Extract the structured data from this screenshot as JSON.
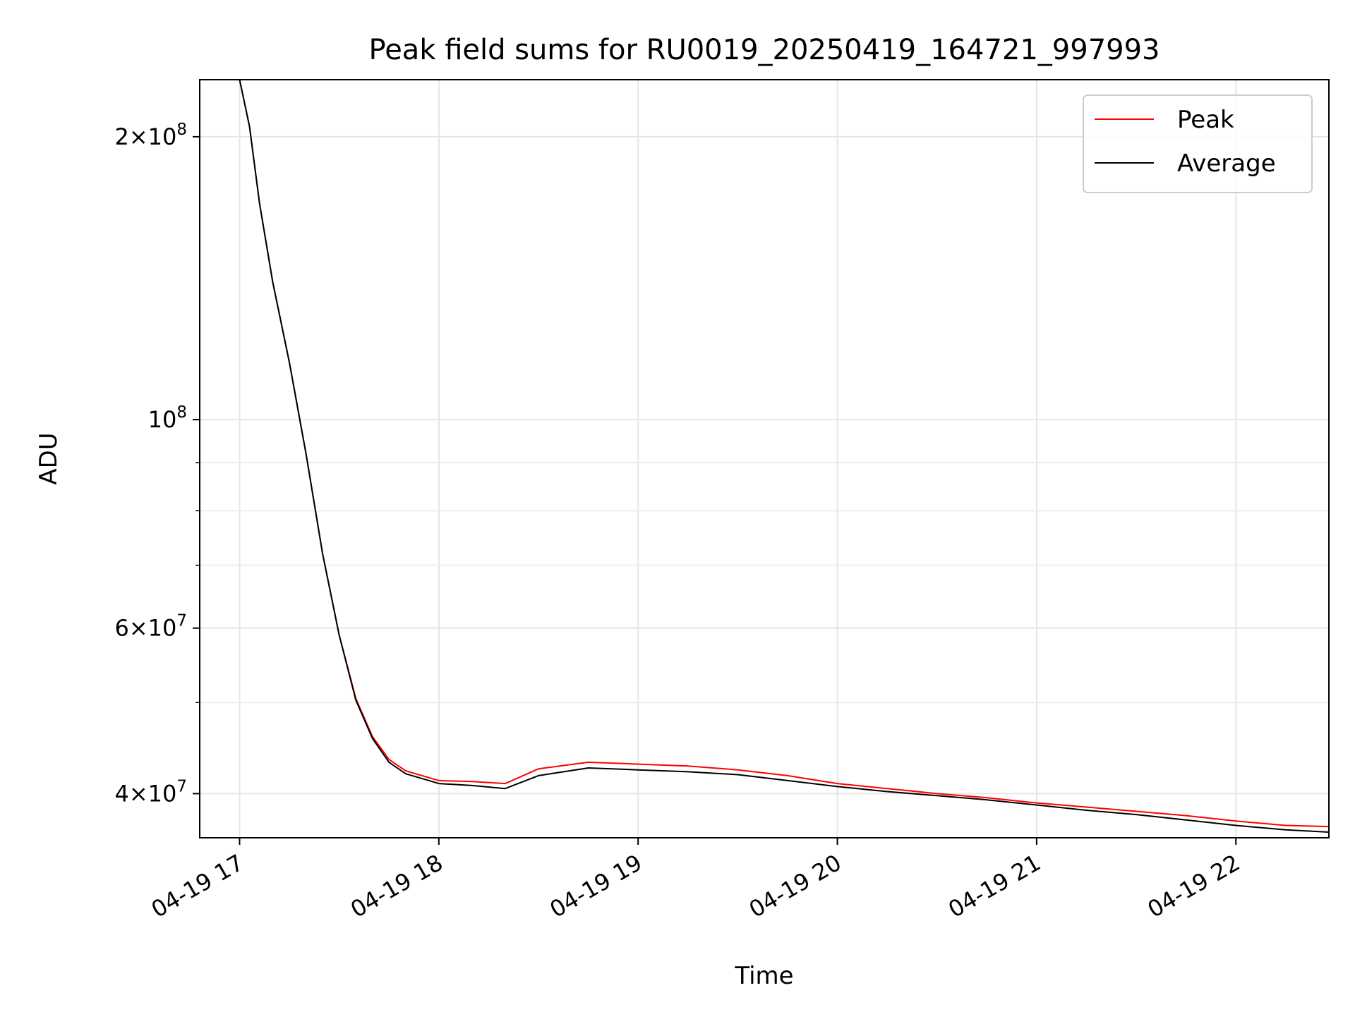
{
  "chart_data": {
    "type": "line",
    "title": "Peak field sums for RU0019_20250419_164721_997993",
    "xlabel": "Time",
    "ylabel": "ADU",
    "y_scale": "log",
    "ylim": [
      35900000,
      230000000
    ],
    "xlim": [
      "2025-04-19 16:48",
      "2025-04-19 22:28"
    ],
    "grid": true,
    "legend_position": "upper right",
    "x_ticks": [
      {
        "label": "04-19 17",
        "time": "2025-04-19 17:00"
      },
      {
        "label": "04-19 18",
        "time": "2025-04-19 18:00"
      },
      {
        "label": "04-19 19",
        "time": "2025-04-19 19:00"
      },
      {
        "label": "04-19 20",
        "time": "2025-04-19 20:00"
      },
      {
        "label": "04-19 21",
        "time": "2025-04-19 21:00"
      },
      {
        "label": "04-19 22",
        "time": "2025-04-19 22:00"
      }
    ],
    "y_ticks": [
      {
        "label_base": "4",
        "label_exp": "7",
        "value": 40000000,
        "style": "mantissa"
      },
      {
        "label_base": "6",
        "label_exp": "7",
        "value": 60000000,
        "style": "mantissa"
      },
      {
        "label_base": "10",
        "label_exp": "8",
        "value": 100000000,
        "style": "power"
      },
      {
        "label_base": "2",
        "label_exp": "8",
        "value": 200000000,
        "style": "mantissa"
      }
    ],
    "y_minor_ticks": [
      50000000,
      70000000,
      80000000,
      90000000
    ],
    "series": [
      {
        "name": "Peak",
        "color": "#ff0000",
        "points": [
          [
            "2025-04-19 17:00",
            230000000
          ],
          [
            "2025-04-19 17:03",
            205000000
          ],
          [
            "2025-04-19 17:06",
            170000000
          ],
          [
            "2025-04-19 17:10",
            140000000
          ],
          [
            "2025-04-19 17:15",
            115000000
          ],
          [
            "2025-04-19 17:20",
            92000000
          ],
          [
            "2025-04-19 17:25",
            72000000
          ],
          [
            "2025-04-19 17:30",
            59000000
          ],
          [
            "2025-04-19 17:35",
            50500000
          ],
          [
            "2025-04-19 17:40",
            46000000
          ],
          [
            "2025-04-19 17:45",
            43500000
          ],
          [
            "2025-04-19 17:50",
            42300000
          ],
          [
            "2025-04-19 18:00",
            41300000
          ],
          [
            "2025-04-19 18:10",
            41200000
          ],
          [
            "2025-04-19 18:20",
            41000000
          ],
          [
            "2025-04-19 18:30",
            42500000
          ],
          [
            "2025-04-19 18:45",
            43200000
          ],
          [
            "2025-04-19 19:00",
            43000000
          ],
          [
            "2025-04-19 19:15",
            42800000
          ],
          [
            "2025-04-19 19:30",
            42400000
          ],
          [
            "2025-04-19 19:45",
            41800000
          ],
          [
            "2025-04-19 20:00",
            41000000
          ],
          [
            "2025-04-19 20:15",
            40500000
          ],
          [
            "2025-04-19 20:30",
            40000000
          ],
          [
            "2025-04-19 20:45",
            39600000
          ],
          [
            "2025-04-19 21:00",
            39100000
          ],
          [
            "2025-04-19 21:15",
            38700000
          ],
          [
            "2025-04-19 21:30",
            38300000
          ],
          [
            "2025-04-19 21:45",
            37900000
          ],
          [
            "2025-04-19 22:00",
            37400000
          ],
          [
            "2025-04-19 22:15",
            37000000
          ],
          [
            "2025-04-19 22:28",
            36900000
          ]
        ]
      },
      {
        "name": "Average",
        "color": "#000000",
        "points": [
          [
            "2025-04-19 17:00",
            230000000
          ],
          [
            "2025-04-19 17:03",
            205000000
          ],
          [
            "2025-04-19 17:06",
            170000000
          ],
          [
            "2025-04-19 17:10",
            140000000
          ],
          [
            "2025-04-19 17:15",
            115000000
          ],
          [
            "2025-04-19 17:20",
            92000000
          ],
          [
            "2025-04-19 17:25",
            72000000
          ],
          [
            "2025-04-19 17:30",
            59000000
          ],
          [
            "2025-04-19 17:35",
            50300000
          ],
          [
            "2025-04-19 17:40",
            45800000
          ],
          [
            "2025-04-19 17:45",
            43200000
          ],
          [
            "2025-04-19 17:50",
            42000000
          ],
          [
            "2025-04-19 18:00",
            41000000
          ],
          [
            "2025-04-19 18:10",
            40800000
          ],
          [
            "2025-04-19 18:20",
            40500000
          ],
          [
            "2025-04-19 18:30",
            41800000
          ],
          [
            "2025-04-19 18:45",
            42600000
          ],
          [
            "2025-04-19 19:00",
            42400000
          ],
          [
            "2025-04-19 19:15",
            42200000
          ],
          [
            "2025-04-19 19:30",
            41900000
          ],
          [
            "2025-04-19 19:45",
            41300000
          ],
          [
            "2025-04-19 20:00",
            40700000
          ],
          [
            "2025-04-19 20:15",
            40200000
          ],
          [
            "2025-04-19 20:30",
            39800000
          ],
          [
            "2025-04-19 20:45",
            39400000
          ],
          [
            "2025-04-19 21:00",
            38900000
          ],
          [
            "2025-04-19 21:15",
            38400000
          ],
          [
            "2025-04-19 21:30",
            38000000
          ],
          [
            "2025-04-19 21:45",
            37500000
          ],
          [
            "2025-04-19 22:00",
            37000000
          ],
          [
            "2025-04-19 22:15",
            36600000
          ],
          [
            "2025-04-19 22:28",
            36400000
          ]
        ]
      }
    ]
  }
}
